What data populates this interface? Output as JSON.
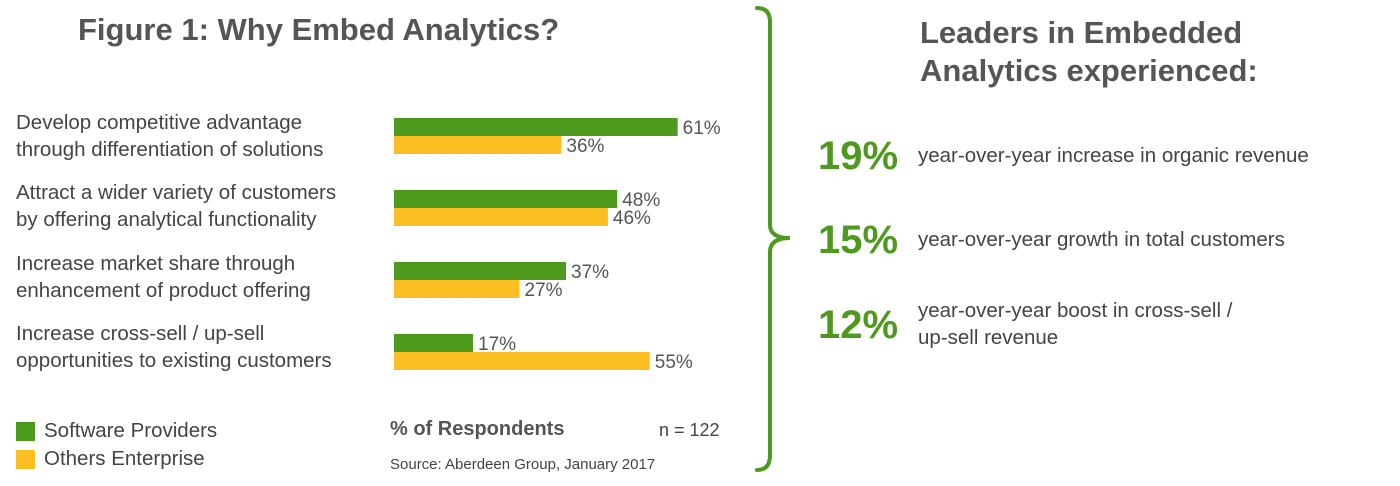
{
  "title": "Figure 1: Why Embed Analytics?",
  "chart_data": {
    "type": "bar",
    "orientation": "horizontal",
    "categories": [
      [
        "Develop competitive advantage",
        "through differentiation of solutions"
      ],
      [
        "Attract a wider variety of customers",
        "by offering analytical functionality"
      ],
      [
        "Increase market share through",
        "enhancement of product offering"
      ],
      [
        "Increase cross-sell / up-sell",
        "opportunities to existing customers"
      ]
    ],
    "series": [
      {
        "name": "Software Providers",
        "color": "#4e9a1e",
        "values": [
          61,
          48,
          37,
          17
        ]
      },
      {
        "name": "Others Enterprise",
        "color": "#fbbf24",
        "values": [
          36,
          46,
          27,
          55
        ]
      }
    ],
    "value_suffix": "%",
    "xlabel": "% of Respondents",
    "xlim": [
      0,
      100
    ],
    "grid": false,
    "legend_position": "bottom-left"
  },
  "sample_note": "n = 122",
  "source": "Source: Aberdeen Group, January 2017",
  "brace_color": "#4e9a1e",
  "right_panel": {
    "title_lines": [
      "Leaders in Embedded",
      "Analytics experienced:"
    ],
    "stats": [
      {
        "value": "19%",
        "lines": [
          "year-over-year increase in organic revenue"
        ]
      },
      {
        "value": "15%",
        "lines": [
          "year-over-year growth in total customers"
        ]
      },
      {
        "value": "12%",
        "lines": [
          "year-over-year boost in cross-sell /",
          "up-sell revenue"
        ]
      }
    ]
  }
}
